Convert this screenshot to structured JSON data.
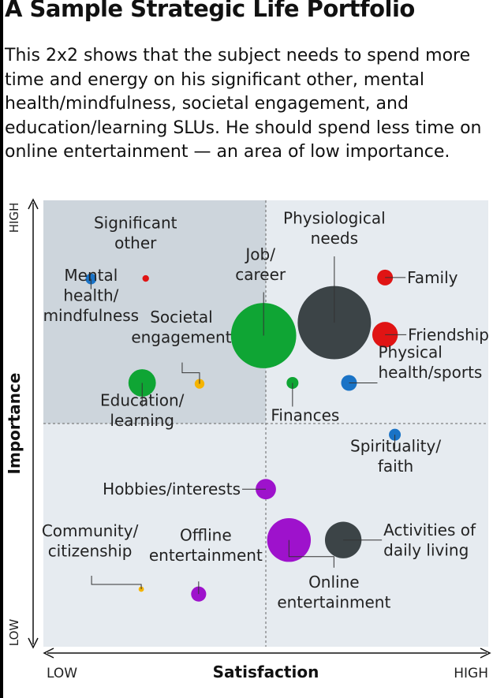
{
  "title": "A Sample Strategic Life Portfolio",
  "subtitle": "This 2x2 shows that the subject needs to spend more time and energy on his significant other, mental health/mindfulness, societal engagement, and education/learning SLUs. He should spend less time on online entertainment — an area of low importance.",
  "colors": {
    "quadrant_highlight": "#cdd5dc",
    "plot_bg": "#e6ebf0",
    "blue": "#1a73c6",
    "red": "#e01414",
    "green": "#0fa534",
    "dark": "#3c4447",
    "orange": "#f5b400",
    "purple": "#9e12cc"
  },
  "chart_data": {
    "type": "scatter",
    "xlabel": "Satisfaction",
    "ylabel": "Importance",
    "x_low_label": "LOW",
    "x_high_label": "HIGH",
    "y_low_label": "LOW",
    "y_high_label": "HIGH",
    "xlim": [
      0,
      1
    ],
    "ylim": [
      0,
      1
    ],
    "midline": 0.5,
    "highlight_quadrant": "top-left",
    "grid": false,
    "points": [
      {
        "id": "significant-other",
        "label_lines": [
          "Significant",
          "other"
        ],
        "x": 0.23,
        "y": 0.825,
        "size": 0.1,
        "color": "red"
      },
      {
        "id": "mental-health",
        "label_lines": [
          "Mental",
          "health/",
          "mindfulness"
        ],
        "x": 0.107,
        "y": 0.824,
        "size": 0.4,
        "color": "blue"
      },
      {
        "id": "societal-engagement",
        "label_lines": [
          "Societal",
          "engagement"
        ],
        "x": 0.351,
        "y": 0.589,
        "size": 0.3,
        "color": "orange"
      },
      {
        "id": "education-learning",
        "label_lines": [
          "Education/",
          "learning"
        ],
        "x": 0.222,
        "y": 0.591,
        "size": 3.5,
        "color": "green"
      },
      {
        "id": "job-career",
        "label_lines": [
          "Job/",
          "career"
        ],
        "x": 0.495,
        "y": 0.697,
        "size": 22,
        "color": "green"
      },
      {
        "id": "physiological-needs",
        "label_lines": [
          "Physiological",
          "needs"
        ],
        "x": 0.654,
        "y": 0.726,
        "size": 28,
        "color": "dark"
      },
      {
        "id": "family",
        "label_lines": [
          "Family"
        ],
        "x": 0.768,
        "y": 0.827,
        "size": 1,
        "color": "red"
      },
      {
        "id": "friendship",
        "label_lines": [
          "Friendship"
        ],
        "x": 0.768,
        "y": 0.699,
        "size": 3,
        "color": "red"
      },
      {
        "id": "physical-health",
        "label_lines": [
          "Physical",
          "health/sports"
        ],
        "x": 0.687,
        "y": 0.591,
        "size": 1,
        "color": "blue"
      },
      {
        "id": "finances",
        "label_lines": [
          "Finances"
        ],
        "x": 0.56,
        "y": 0.591,
        "size": 0.5,
        "color": "green"
      },
      {
        "id": "spirituality-faith",
        "label_lines": [
          "Spirituality/",
          "faith"
        ],
        "x": 0.79,
        "y": 0.475,
        "size": 0.5,
        "color": "blue"
      },
      {
        "id": "hobbies-interests",
        "label_lines": [
          "Hobbies/interests"
        ],
        "x": 0.5,
        "y": 0.353,
        "size": 1.8,
        "color": "purple"
      },
      {
        "id": "activities-daily-living",
        "label_lines": [
          "Activities of",
          "daily living"
        ],
        "x": 0.674,
        "y": 0.239,
        "size": 6.5,
        "color": "dark"
      },
      {
        "id": "online-entertainment",
        "label_lines": [
          "Online",
          "entertainment"
        ],
        "x": 0.552,
        "y": 0.239,
        "size": 9.5,
        "color": "purple"
      },
      {
        "id": "community-citizenship",
        "label_lines": [
          "Community/",
          "citizenship"
        ],
        "x": 0.22,
        "y": 0.129,
        "size": 0.05,
        "color": "orange"
      },
      {
        "id": "offline-entertainment",
        "label_lines": [
          "Offline",
          "entertainment"
        ],
        "x": 0.349,
        "y": 0.118,
        "size": 0.9,
        "color": "purple"
      }
    ]
  }
}
